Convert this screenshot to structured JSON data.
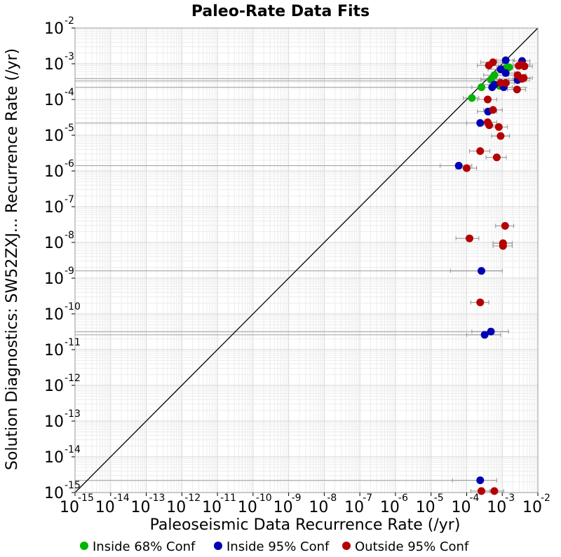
{
  "chart_data": {
    "type": "scatter",
    "title": "Paleo-Rate Data Fits",
    "xlabel": "Paleoseismic Data Recurrence Rate (/yr)",
    "ylabel": "Solution Diagnostics: SW52ZXJ... Recurrence Rate (/yr)",
    "x_scale": "log",
    "y_scale": "log",
    "xlim": [
      1e-15,
      0.01
    ],
    "ylim": [
      1e-15,
      0.01
    ],
    "grid": true,
    "legend_position": "bottom",
    "tick_base": "10",
    "x_tick_exponents": [
      "-15",
      "-14",
      "-13",
      "-12",
      "-11",
      "-10",
      "-9",
      "-8",
      "-7",
      "-6",
      "-5",
      "-4",
      "-3",
      "-2"
    ],
    "y_tick_exponents": [
      "-15",
      "-14",
      "-13",
      "-12",
      "-11",
      "-10",
      "-9",
      "-8",
      "-7",
      "-6",
      "-5",
      "-4",
      "-3",
      "-2"
    ],
    "reference_line": "y = x",
    "series": [
      {
        "name": "Inside 68% Conf",
        "color": "#00b400",
        "points": [
          {
            "x": 0.00026,
            "y": 0.00022,
            "xlo": 0.00014,
            "xhi": 0.00045
          },
          {
            "x": 0.00014,
            "y": 0.00011,
            "xlo": 8e-05,
            "xhi": 0.00022
          },
          {
            "x": 0.0006,
            "y": 0.00048,
            "xlo": 0.0003,
            "xhi": 0.0011
          },
          {
            "x": 0.00048,
            "y": 0.00036,
            "xlo": 0.00025,
            "xhi": 0.00085
          },
          {
            "x": 0.00085,
            "y": 0.00024,
            "xlo": 0.0005,
            "xhi": 0.0014
          },
          {
            "x": 0.0012,
            "y": 0.00075,
            "xlo": 0.0007,
            "xhi": 0.002
          },
          {
            "x": 0.00155,
            "y": 0.0008,
            "xlo": 0.0009,
            "xhi": 0.0026
          }
        ]
      },
      {
        "name": "Inside 95% Conf",
        "color": "#0000b4",
        "points": [
          {
            "x": 0.00125,
            "y": 0.00125,
            "xlo": 0.0007,
            "xhi": 0.0022
          },
          {
            "x": 0.0036,
            "y": 0.0012,
            "xlo": 0.002,
            "xhi": 0.006
          },
          {
            "x": 0.0009,
            "y": 0.0007,
            "xlo": 0.0004,
            "xhi": 0.0016
          },
          {
            "x": 0.00125,
            "y": 0.00055,
            "xlo": 0.0007,
            "xhi": 0.0022
          },
          {
            "x": 0.0027,
            "y": 0.00035,
            "xlo": 0.0015,
            "xhi": 0.0045
          },
          {
            "x": 0.0006,
            "y": 0.00026,
            "xlo": 0.0003,
            "xhi": 0.0011
          },
          {
            "x": 0.00052,
            "y": 0.00022,
            "xlo": 0.00025,
            "xhi": 0.0009
          },
          {
            "x": 0.0011,
            "y": 0.00022,
            "xlo": 0.0006,
            "xhi": 0.0019
          },
          {
            "x": 0.0004,
            "y": 4.6e-05,
            "xlo": 0.0002,
            "xhi": 0.0007
          },
          {
            "x": 0.00024,
            "y": 2.2e-05,
            "xlo": 0.0001,
            "xhi": 0.00045
          },
          {
            "x": 6e-05,
            "y": 1.4e-06,
            "xlo": 1.8e-05,
            "xhi": 0.00014
          },
          {
            "x": 0.00026,
            "y": 1.6e-09,
            "xlo": 3.5e-05,
            "xhi": 0.001
          },
          {
            "x": 0.00048,
            "y": 3.2e-11,
            "xlo": 0.00014,
            "xhi": 0.0015
          },
          {
            "x": 0.00032,
            "y": 2.6e-11,
            "xlo": 0.0001,
            "xhi": 0.0009
          },
          {
            "x": 0.00024,
            "y": 2.2e-15,
            "xlo": 4e-05,
            "xhi": 0.0007
          }
        ]
      },
      {
        "name": "Outside 95% Conf",
        "color": "#b40000",
        "points": [
          {
            "x": 0.00055,
            "y": 0.0011,
            "xlo": 0.00025,
            "xhi": 0.001
          },
          {
            "x": 0.00042,
            "y": 0.0009,
            "xlo": 0.0002,
            "xhi": 0.0008
          },
          {
            "x": 0.0036,
            "y": 0.00095,
            "xlo": 0.002,
            "xhi": 0.006
          },
          {
            "x": 0.0042,
            "y": 0.00085,
            "xlo": 0.0024,
            "xhi": 0.007
          },
          {
            "x": 0.0029,
            "y": 0.00088,
            "xlo": 0.0016,
            "xhi": 0.005
          },
          {
            "x": 0.0027,
            "y": 0.00048,
            "xlo": 0.0015,
            "xhi": 0.0046
          },
          {
            "x": 0.004,
            "y": 0.0004,
            "xlo": 0.0022,
            "xhi": 0.007
          },
          {
            "x": 0.0036,
            "y": 0.00038,
            "xlo": 0.002,
            "xhi": 0.006
          },
          {
            "x": 0.0009,
            "y": 0.00029,
            "xlo": 0.0005,
            "xhi": 0.0016
          },
          {
            "x": 0.00125,
            "y": 0.00029,
            "xlo": 0.0007,
            "xhi": 0.0022
          },
          {
            "x": 0.0026,
            "y": 0.00019,
            "xlo": 0.0014,
            "xhi": 0.0045
          },
          {
            "x": 0.00039,
            "y": 0.0001,
            "xlo": 0.0002,
            "xhi": 0.0007
          },
          {
            "x": 0.00055,
            "y": 5.1e-05,
            "xlo": 0.0003,
            "xhi": 0.001
          },
          {
            "x": 0.00039,
            "y": 2.3e-05,
            "xlo": 0.0002,
            "xhi": 0.0007
          },
          {
            "x": 0.00043,
            "y": 1.9e-05,
            "xlo": 0.00022,
            "xhi": 0.00075
          },
          {
            "x": 0.0008,
            "y": 1.7e-05,
            "xlo": 0.00045,
            "xhi": 0.0014
          },
          {
            "x": 0.0009,
            "y": 9.5e-06,
            "xlo": 0.0005,
            "xhi": 0.0016
          },
          {
            "x": 0.00024,
            "y": 3.6e-06,
            "xlo": 0.00012,
            "xhi": 0.00045
          },
          {
            "x": 0.0007,
            "y": 2.4e-06,
            "xlo": 0.00035,
            "xhi": 0.0013
          },
          {
            "x": 0.0001,
            "y": 1.2e-06,
            "xlo": 5e-05,
            "xhi": 0.00019
          },
          {
            "x": 0.0012,
            "y": 2.9e-08,
            "xlo": 0.00065,
            "xhi": 0.0021
          },
          {
            "x": 0.00012,
            "y": 1.3e-08,
            "xlo": 5e-05,
            "xhi": 0.00022
          },
          {
            "x": 0.00105,
            "y": 9.5e-09,
            "xlo": 0.00055,
            "xhi": 0.0019
          },
          {
            "x": 0.00105,
            "y": 8e-09,
            "xlo": 0.00055,
            "xhi": 0.0019
          },
          {
            "x": 0.00024,
            "y": 2.1e-10,
            "xlo": 0.00013,
            "xhi": 0.00042
          },
          {
            "x": 0.00026,
            "y": 1.1e-15,
            "xlo": 0.00013,
            "xhi": 0.00045
          },
          {
            "x": 0.0006,
            "y": 1.1e-15,
            "xlo": 0.0003,
            "xhi": 0.0011
          }
        ]
      }
    ],
    "horizontal_ranges": [
      {
        "y": 0.00038,
        "x0": 1e-15,
        "x1": 0.006
      },
      {
        "y": 0.00033,
        "x0": 1e-15,
        "x1": 0.006
      },
      {
        "y": 0.00022,
        "x0": 1e-15,
        "x1": 0.005
      },
      {
        "y": 2.2e-05,
        "x0": 1e-15,
        "x1": 0.00045
      },
      {
        "y": 1.4e-06,
        "x0": 1e-15,
        "x1": 0.00014
      },
      {
        "y": 1.6e-09,
        "x0": 1e-15,
        "x1": 0.001
      },
      {
        "y": 3.2e-11,
        "x0": 1e-15,
        "x1": 0.0015
      },
      {
        "y": 2.6e-11,
        "x0": 1e-15,
        "x1": 0.0009
      },
      {
        "y": 2.2e-15,
        "x0": 1e-15,
        "x1": 0.0007
      }
    ]
  }
}
